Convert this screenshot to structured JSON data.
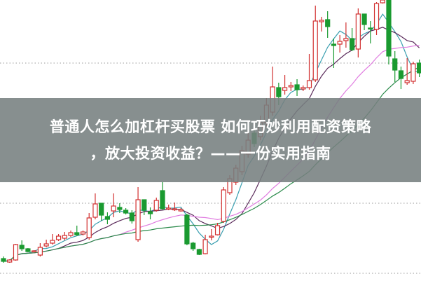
{
  "title": {
    "line1": "普通人怎么加杠杆买股票 如何巧妙利用配资策略",
    "line2": "，放大投资收益？——一份实用指南"
  },
  "chart_data": {
    "type": "candlestick",
    "title": "",
    "xlabel": "",
    "ylabel": "",
    "ylim": [
      0,
      40
    ],
    "grid": "dotted horizontal",
    "columns": [
      "open",
      "close",
      "high",
      "low"
    ],
    "candles": [
      [
        3.1,
        2.7,
        3.4,
        2.5
      ],
      [
        2.6,
        2.9,
        3.0,
        2.5
      ],
      [
        2.9,
        5.1,
        5.2,
        2.8
      ],
      [
        5.0,
        4.5,
        5.7,
        4.2
      ],
      [
        4.5,
        4.1,
        4.6,
        4.0
      ],
      [
        4.1,
        4.2,
        4.3,
        4.0
      ],
      [
        3.6,
        4.7,
        5.3,
        3.4
      ],
      [
        4.9,
        5.2,
        5.8,
        4.7
      ],
      [
        5.3,
        5.7,
        6.6,
        5.1
      ],
      [
        5.8,
        6.3,
        6.6,
        5.6
      ],
      [
        6.0,
        6.4,
        6.9,
        5.7
      ],
      [
        6.4,
        6.8,
        7.1,
        6.2
      ],
      [
        6.8,
        6.5,
        7.8,
        6.3
      ],
      [
        6.6,
        6.9,
        7.1,
        6.4
      ],
      [
        6.1,
        8.9,
        9.6,
        5.8
      ],
      [
        9.0,
        10.9,
        12.4,
        8.7
      ],
      [
        11.0,
        9.3,
        11.0,
        8.5
      ],
      [
        9.1,
        8.7,
        9.7,
        8.0
      ],
      [
        9.9,
        10.6,
        12.4,
        9.0
      ],
      [
        10.4,
        10.1,
        11.0,
        9.6
      ],
      [
        10.0,
        9.6,
        10.3,
        9.4
      ],
      [
        9.6,
        8.5,
        10.0,
        8.1
      ],
      [
        5.8,
        11.5,
        13.3,
        5.5
      ],
      [
        11.5,
        10.0,
        11.5,
        9.3
      ],
      [
        9.8,
        9.5,
        10.4,
        8.7
      ],
      [
        10.0,
        11.4,
        11.8,
        9.8
      ],
      [
        12.8,
        10.2,
        14.0,
        10.1
      ],
      [
        10.2,
        10.3,
        10.8,
        10.0
      ],
      [
        10.2,
        10.2,
        11.1,
        9.9
      ],
      [
        9.9,
        10.1,
        10.3,
        9.8
      ],
      [
        9.3,
        5.2,
        9.5,
        5.0
      ],
      [
        5.3,
        4.5,
        5.5,
        4.2
      ],
      [
        4.4,
        3.7,
        4.5,
        3.6
      ],
      [
        3.8,
        5.8,
        6.5,
        3.7
      ],
      [
        6.3,
        6.3,
        7.3,
        5.7
      ],
      [
        6.5,
        7.8,
        8.2,
        6.4
      ],
      [
        8.4,
        12.9,
        13.3,
        8.2
      ],
      [
        12.5,
        14.5,
        15.0,
        12.2
      ],
      [
        14.0,
        16.0,
        16.5,
        13.6
      ],
      [
        15.5,
        18.5,
        19.2,
        15.0
      ],
      [
        18.0,
        20.0,
        21.0,
        17.5
      ],
      [
        21.0,
        19.5,
        21.5,
        19.0
      ],
      [
        20.5,
        22.5,
        23.5,
        20.0
      ],
      [
        22.5,
        25.0,
        26.0,
        22.0
      ],
      [
        24.0,
        27.6,
        30.5,
        23.5
      ],
      [
        27.5,
        26.2,
        28.2,
        25.0
      ],
      [
        27.1,
        27.5,
        29.3,
        26.5
      ],
      [
        27.6,
        27.8,
        28.3,
        27.0
      ],
      [
        27.9,
        27.2,
        28.7,
        26.3
      ],
      [
        27.3,
        27.5,
        27.8,
        27.0
      ],
      [
        27.5,
        28.5,
        32.3,
        27.2
      ],
      [
        28.6,
        37.0,
        39.2,
        28.3
      ],
      [
        36.9,
        37.1,
        37.6,
        35.5
      ],
      [
        37.2,
        36.2,
        38.4,
        34.6
      ],
      [
        33.7,
        33.5,
        34.5,
        30.3
      ],
      [
        33.7,
        34.1,
        35.0,
        32.5
      ],
      [
        34.2,
        34.5,
        36.8,
        33.2
      ],
      [
        34.5,
        32.9,
        36.0,
        32.7
      ],
      [
        33.0,
        38.0,
        38.8,
        31.8
      ],
      [
        38.0,
        36.5,
        38.0,
        35.7
      ],
      [
        36.0,
        35.9,
        37.0,
        33.8
      ],
      [
        35.8,
        39.5,
        39.7,
        35.0
      ],
      [
        39.6,
        40.0,
        40.2,
        39.5
      ],
      [
        40.0,
        32.0,
        40.2,
        30.8
      ],
      [
        31.6,
        30.0,
        32.7,
        28.3
      ],
      [
        29.9,
        28.8,
        30.5,
        27.3
      ],
      [
        28.2,
        28.5,
        31.7,
        27.9
      ],
      [
        28.4,
        30.9,
        31.2,
        28.0
      ],
      [
        31.0,
        29.6,
        31.5,
        29.0
      ]
    ],
    "moving_averages": [
      {
        "period": 5,
        "color": "#3a9fb0"
      },
      {
        "period": 10,
        "color": "#5a2a5a"
      },
      {
        "period": 20,
        "color": "#e07ce0"
      },
      {
        "period": 30,
        "color": "#2a8a4a"
      }
    ],
    "colors": {
      "up": "#d23030",
      "down": "#1a9a30",
      "grid": "#9a9a9a"
    }
  }
}
